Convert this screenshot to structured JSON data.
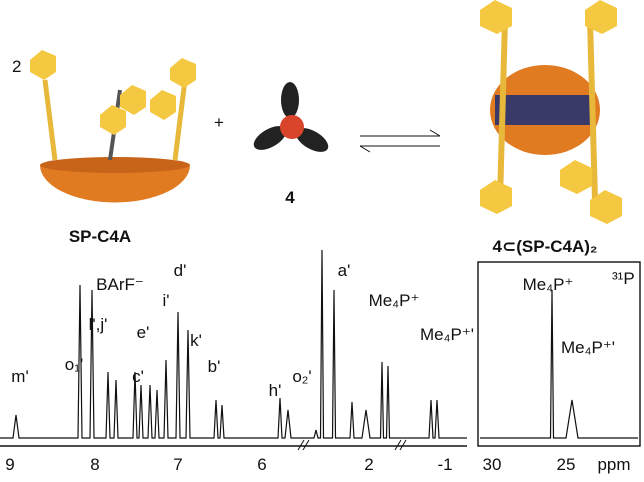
{
  "scheme": {
    "coefficient": "2",
    "plus": "+",
    "host_label": "SP-C4A",
    "guest_label": "4",
    "complex_label": "4⊂(SP-C4A)₂"
  },
  "spectrum_1h": {
    "peak_labels": [
      "m'",
      "o₁'",
      "l',j'",
      "BArF⁻",
      "e'",
      "c'",
      "i'",
      "d'",
      "k'",
      "b'",
      "h'",
      "o₂'",
      "a'",
      "Me₄P⁺",
      "Me₄P⁺'"
    ],
    "axis_ticks": [
      "9",
      "8",
      "7",
      "6",
      "2",
      "-1"
    ]
  },
  "spectrum_31p": {
    "nucleus": "³¹P",
    "peak_labels": [
      "Me₄P⁺",
      "Me₄P⁺'"
    ],
    "axis_ticks": [
      "30",
      "25"
    ],
    "unit": "ppm"
  }
}
